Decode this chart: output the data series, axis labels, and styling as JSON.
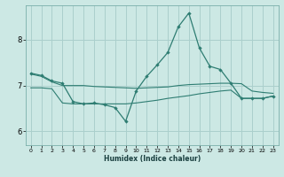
{
  "xlabel": "Humidex (Indice chaleur)",
  "ylabel": "",
  "bg_color": "#cce8e4",
  "line_color": "#2e7d72",
  "grid_color": "#aacfcc",
  "xlim": [
    -0.5,
    23.5
  ],
  "ylim": [
    5.7,
    8.75
  ],
  "xticks": [
    0,
    1,
    2,
    3,
    4,
    5,
    6,
    7,
    8,
    9,
    10,
    11,
    12,
    13,
    14,
    15,
    16,
    17,
    18,
    19,
    20,
    21,
    22,
    23
  ],
  "yticks": [
    6,
    7,
    8
  ],
  "line1_x": [
    0,
    1,
    2,
    3,
    4,
    5,
    6,
    7,
    8,
    9,
    10,
    11,
    12,
    13,
    14,
    15,
    16,
    17,
    18,
    19,
    20,
    21,
    22,
    23
  ],
  "line1_y": [
    7.27,
    7.22,
    7.1,
    7.05,
    6.65,
    6.6,
    6.62,
    6.58,
    6.52,
    6.22,
    6.88,
    7.2,
    7.45,
    7.72,
    8.28,
    8.58,
    7.82,
    7.42,
    7.35,
    7.05,
    6.72,
    6.72,
    6.72,
    6.77
  ],
  "line2_x": [
    0,
    1,
    2,
    3,
    4,
    5,
    6,
    7,
    8,
    9,
    10,
    11,
    12,
    13,
    14,
    15,
    16,
    17,
    18,
    19,
    20,
    21,
    22,
    23
  ],
  "line2_y": [
    7.25,
    7.2,
    7.08,
    7.0,
    7.0,
    7.0,
    6.98,
    6.97,
    6.96,
    6.95,
    6.94,
    6.95,
    6.96,
    6.97,
    7.0,
    7.02,
    7.03,
    7.04,
    7.05,
    7.05,
    7.04,
    6.88,
    6.85,
    6.83
  ],
  "line3_x": [
    0,
    1,
    2,
    3,
    4,
    5,
    6,
    7,
    8,
    9,
    10,
    11,
    12,
    13,
    14,
    15,
    16,
    17,
    18,
    19,
    20,
    21,
    22,
    23
  ],
  "line3_y": [
    6.95,
    6.95,
    6.93,
    6.62,
    6.6,
    6.6,
    6.6,
    6.6,
    6.6,
    6.6,
    6.62,
    6.65,
    6.68,
    6.72,
    6.75,
    6.78,
    6.82,
    6.85,
    6.88,
    6.9,
    6.72,
    6.72,
    6.72,
    6.77
  ]
}
